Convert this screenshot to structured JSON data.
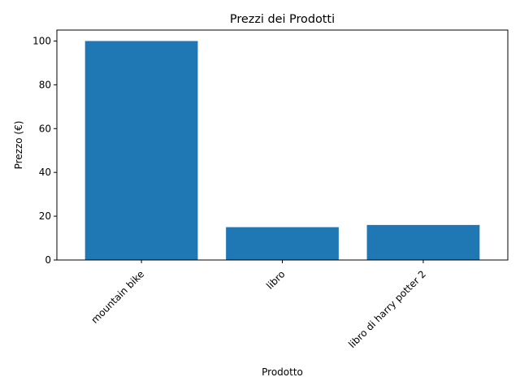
{
  "chart_data": {
    "type": "bar",
    "title": "Prezzi dei Prodotti",
    "xlabel": "Prodotto",
    "ylabel": "Prezzo (€)",
    "categories": [
      "mountain bike",
      "libro",
      "libro di harry potter 2"
    ],
    "values": [
      100,
      15,
      16
    ],
    "ylim": [
      0,
      105
    ],
    "yticks": [
      0,
      20,
      40,
      60,
      80,
      100
    ],
    "bar_color": "#1f77b4",
    "grid": false,
    "legend": "none"
  }
}
